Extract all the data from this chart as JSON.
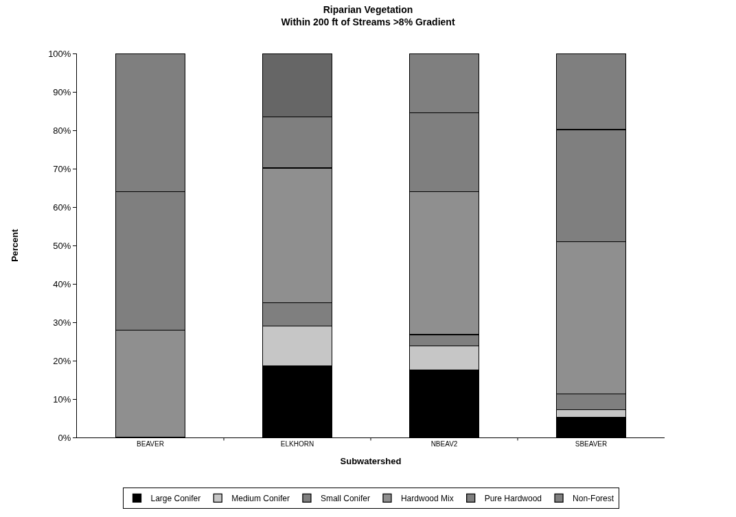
{
  "chart_data": {
    "type": "bar",
    "stacked": true,
    "title": "Riparian Vegetation\nWithin 200 ft of Streams >8% Gradient",
    "xlabel": "Subwatershed",
    "ylabel": "Percent",
    "categories": [
      "BEAVER",
      "ELKHORN",
      "NBEAV2",
      "SBEAVER"
    ],
    "series": [
      {
        "name": "Large Conifer",
        "color": "#000000",
        "values": [
          0,
          18.7,
          17.6,
          5.3
        ]
      },
      {
        "name": "Medium Conifer",
        "color": "#c6c6c6",
        "values": [
          0,
          10.3,
          6.2,
          1.9
        ]
      },
      {
        "name": "Small Conifer",
        "color": "#7f7f7f",
        "values": [
          0,
          6.1,
          3.0,
          4.1
        ]
      },
      {
        "name": "Hardwood Mix",
        "color": "#8f8f8f",
        "values": [
          28,
          35.1,
          37.2,
          39.7
        ]
      },
      {
        "name": "Pure Hardwood",
        "color": "#7f7f7f",
        "values": [
          36,
          13.3,
          20.6,
          29.2
        ]
      },
      {
        "name": "Non-Forest",
        "color": "#7f7f7f",
        "colors": [
          "#7f7f7f",
          "#666666",
          "#7f7f7f",
          "#7f7f7f"
        ],
        "values": [
          36,
          16.5,
          15.4,
          19.8
        ]
      }
    ],
    "ylim": [
      0,
      100
    ],
    "yticks": [
      {
        "value": 0,
        "label": "0%"
      },
      {
        "value": 10,
        "label": "10%"
      },
      {
        "value": 20,
        "label": "20%"
      },
      {
        "value": 30,
        "label": "30%"
      },
      {
        "value": 40,
        "label": "40%"
      },
      {
        "value": 50,
        "label": "50%"
      },
      {
        "value": 60,
        "label": "60%"
      },
      {
        "value": 70,
        "label": "70%"
      },
      {
        "value": 80,
        "label": "80%"
      },
      {
        "value": 90,
        "label": "90%"
      },
      {
        "value": 100,
        "label": "100%"
      }
    ],
    "legend": "bottom"
  }
}
